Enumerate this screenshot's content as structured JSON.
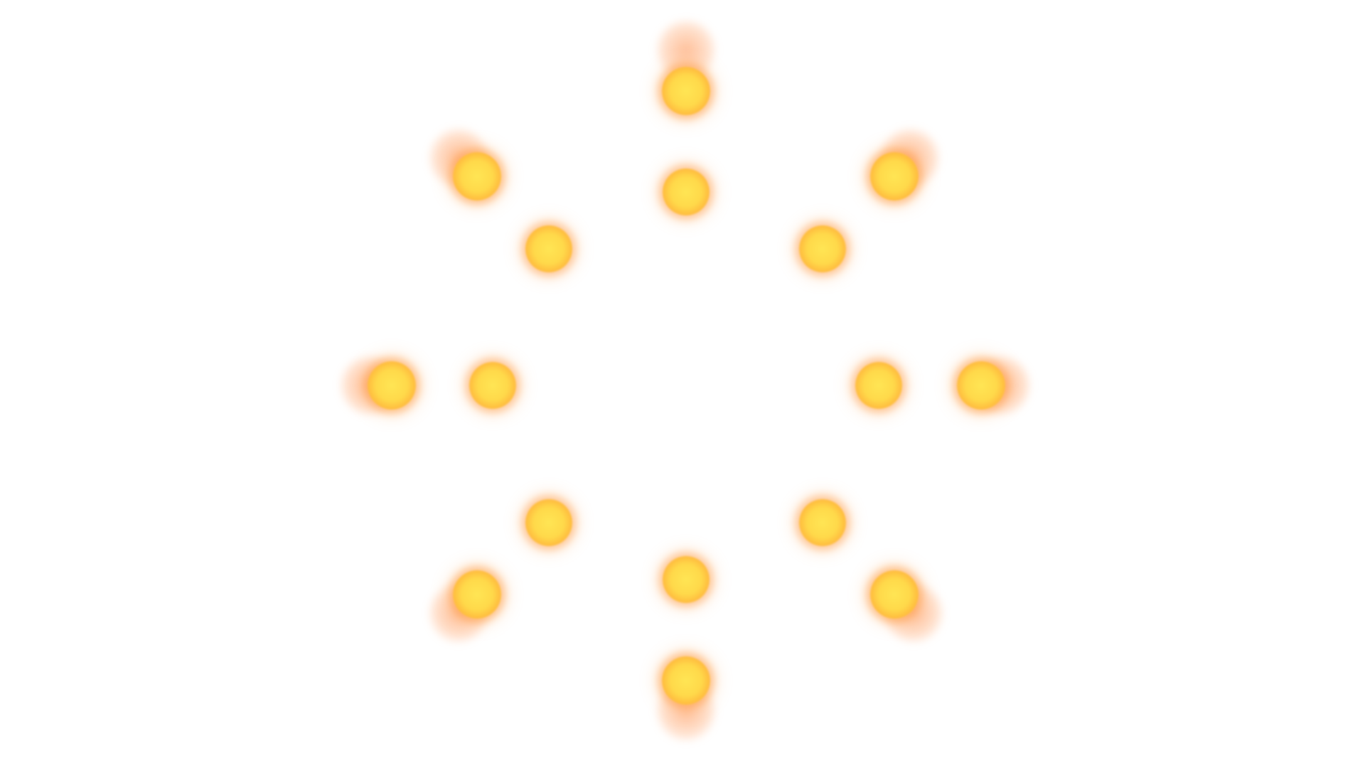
{
  "colors": {
    "background": "#ffffff",
    "dot_core": "#ffe554",
    "dot_edge": "#ff9a35",
    "glow": "#ff8c46"
  },
  "spinner": {
    "icon": "sunburst-loading-spinner-icon",
    "ray_count": 8,
    "dots_per_ray": 2
  }
}
